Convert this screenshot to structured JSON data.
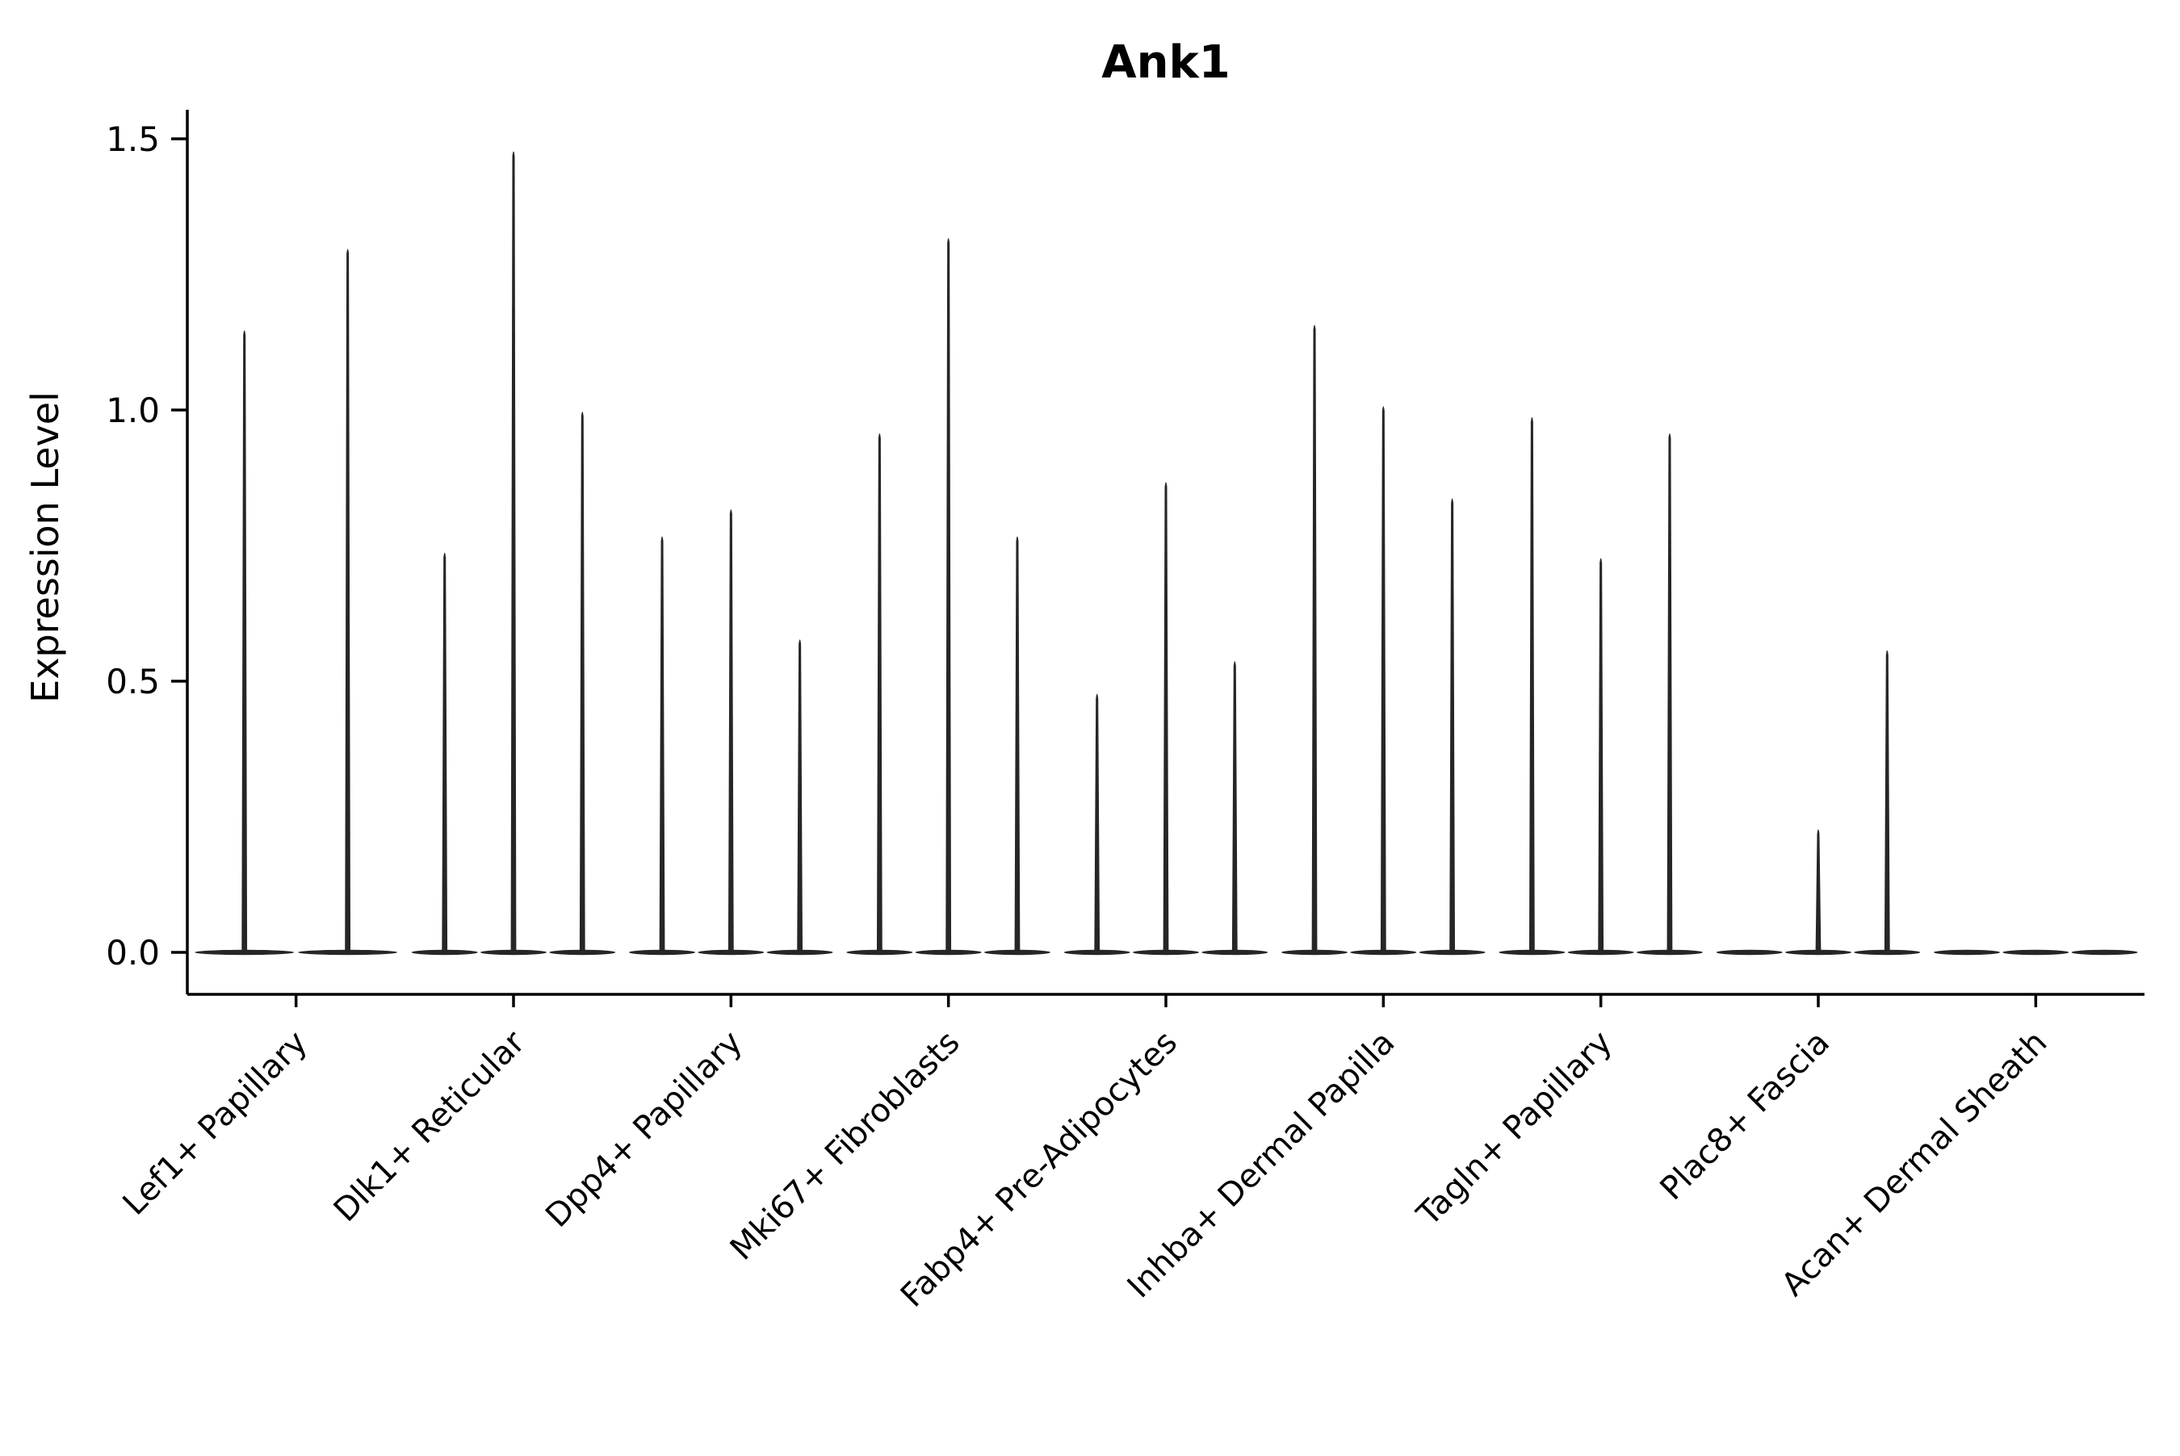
{
  "chart_data": {
    "type": "violin",
    "title": "Ank1",
    "ylabel": "Expression Level",
    "xlabel": "",
    "ylim": [
      -0.05,
      1.55
    ],
    "grid": false,
    "legend": "none",
    "violin_color": "#262626",
    "axis_color": "#000000",
    "background_color": "#ffffff",
    "yticks": [
      {
        "value": 0.0,
        "label": "0.0"
      },
      {
        "value": 0.5,
        "label": "0.5"
      },
      {
        "value": 1.0,
        "label": "1.0"
      },
      {
        "value": 1.5,
        "label": "1.5"
      }
    ],
    "categories": [
      {
        "label": "Lef1+ Papillary",
        "violin_peaks": [
          1.15,
          1.3
        ]
      },
      {
        "label": "Dlk1+ Reticular",
        "violin_peaks": [
          0.74,
          1.48,
          1.0
        ]
      },
      {
        "label": "Dpp4+ Papillary",
        "violin_peaks": [
          0.77,
          0.82,
          0.58
        ]
      },
      {
        "label": "Mki67+ Fibroblasts",
        "violin_peaks": [
          0.96,
          1.32,
          0.77
        ]
      },
      {
        "label": "Fabp4+ Pre-Adipocytes",
        "violin_peaks": [
          0.48,
          0.87,
          0.54
        ]
      },
      {
        "label": "Inhba+ Dermal Papilla",
        "violin_peaks": [
          1.16,
          1.01,
          0.84
        ]
      },
      {
        "label": "Tagln+ Papillary",
        "violin_peaks": [
          0.99,
          0.73,
          0.96
        ]
      },
      {
        "label": "Plac8+ Fascia",
        "violin_peaks": [
          0.0,
          0.23,
          0.56
        ]
      },
      {
        "label": "Acan+ Dermal Sheath",
        "violin_peaks": [
          0.0,
          0.0,
          0.0
        ]
      }
    ]
  }
}
